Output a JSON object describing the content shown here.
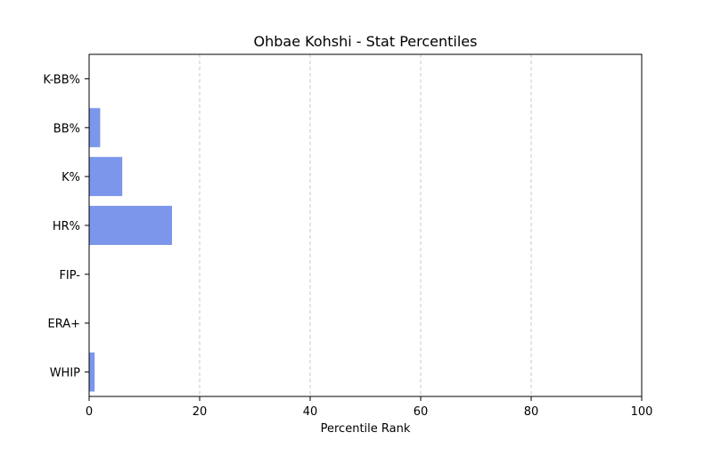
{
  "chart_data": {
    "type": "bar",
    "orientation": "horizontal",
    "title": "Ohbae Kohshi - Stat Percentiles",
    "xlabel": "Percentile Rank",
    "ylabel": "",
    "xlim": [
      0,
      100
    ],
    "xticks": [
      0,
      20,
      40,
      60,
      80,
      100
    ],
    "grid": "x",
    "categories": [
      "K-BB%",
      "BB%",
      "K%",
      "HR%",
      "FIP-",
      "ERA+",
      "WHIP"
    ],
    "values": [
      0,
      2,
      6,
      15,
      0,
      0,
      1
    ],
    "bar_color": "#7b96ea"
  }
}
